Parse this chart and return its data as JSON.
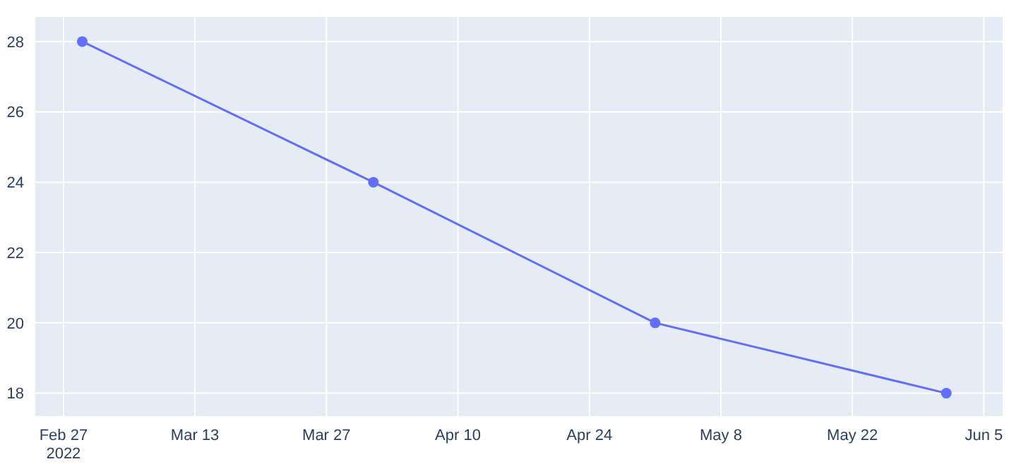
{
  "chart_data": {
    "type": "line",
    "x": [
      "2022-03-01",
      "2022-04-01",
      "2022-05-01",
      "2022-06-01"
    ],
    "series": [
      {
        "color": "#636efa",
        "values": [
          28,
          24,
          20,
          18
        ]
      }
    ],
    "xlim": [
      "2022-02-24",
      "2022-06-07"
    ],
    "xticks": [
      {
        "value": "2022-02-27",
        "label": "Feb 27\n2022"
      },
      {
        "value": "2022-03-13",
        "label": "Mar 13"
      },
      {
        "value": "2022-03-27",
        "label": "Mar 27"
      },
      {
        "value": "2022-04-10",
        "label": "Apr 10"
      },
      {
        "value": "2022-04-24",
        "label": "Apr 24"
      },
      {
        "value": "2022-05-08",
        "label": "May 8"
      },
      {
        "value": "2022-05-22",
        "label": "May 22"
      },
      {
        "value": "2022-06-05",
        "label": "Jun 5"
      }
    ],
    "ylim": [
      17.35,
      28.7
    ],
    "yticks": [
      18,
      20,
      22,
      24,
      26,
      28
    ],
    "grid": true,
    "marker": "circle",
    "line_style": "solid",
    "legend": false
  }
}
